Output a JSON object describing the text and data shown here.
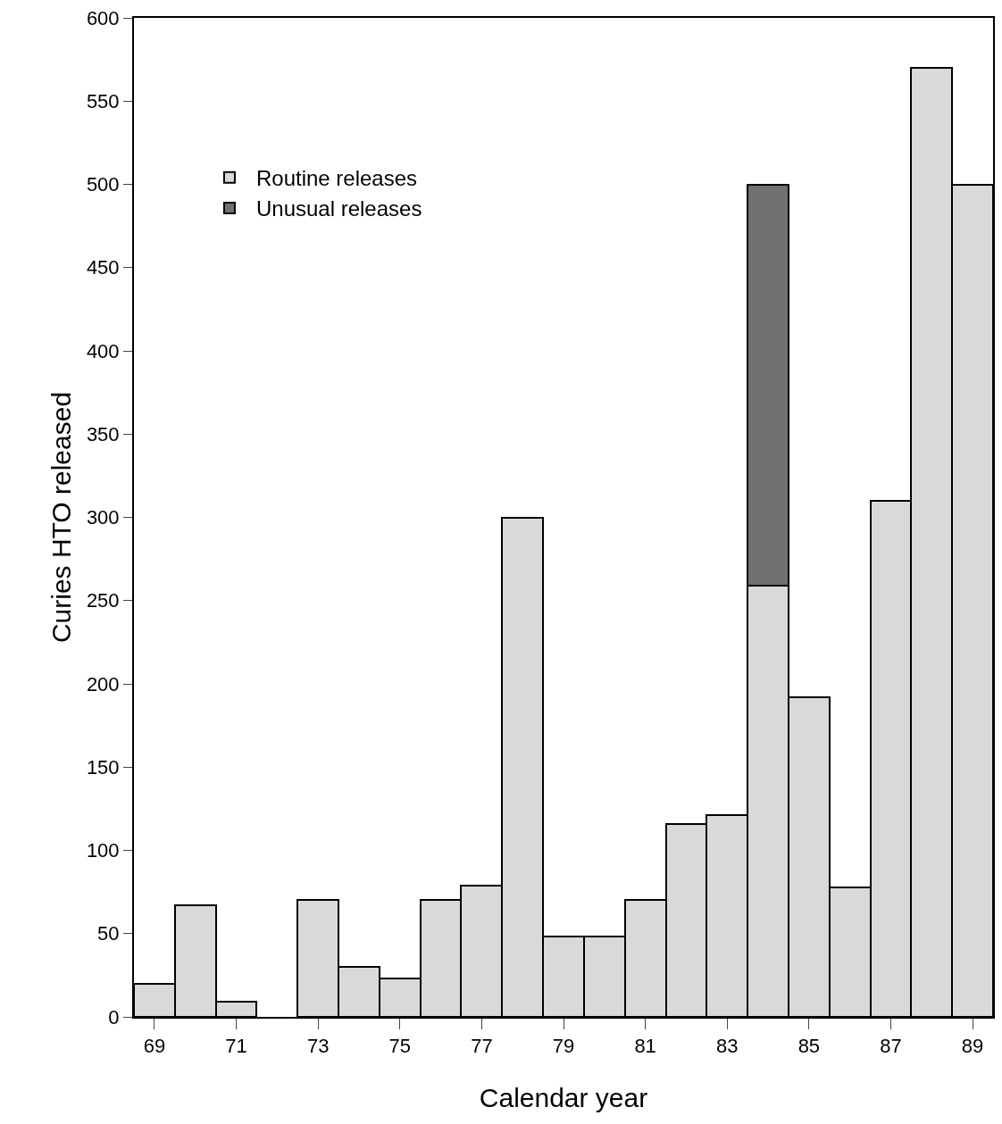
{
  "chart_data": {
    "type": "bar",
    "stacked": true,
    "xlabel": "Calendar year",
    "ylabel": "Curies HTO released",
    "categories": [
      "69",
      null,
      "71",
      null,
      "73",
      null,
      "75",
      null,
      "77",
      null,
      "79",
      null,
      "81",
      null,
      "83",
      null,
      "85",
      null,
      "87",
      null,
      "89"
    ],
    "series": [
      {
        "name": "Routine releases",
        "color": "#d9d9d9",
        "values": [
          20,
          67,
          9,
          null,
          70,
          30,
          23,
          70,
          79,
          300,
          48,
          48,
          70,
          116,
          121,
          259,
          192,
          78,
          310,
          570,
          500
        ]
      },
      {
        "name": "Unusual releases",
        "color": "#707070",
        "values": [
          null,
          null,
          null,
          null,
          null,
          null,
          null,
          null,
          null,
          null,
          null,
          null,
          null,
          null,
          null,
          241,
          null,
          null,
          null,
          null,
          null
        ]
      }
    ],
    "ylim": [
      0,
      600
    ],
    "yticks": [
      0,
      50,
      100,
      150,
      200,
      250,
      300,
      350,
      400,
      450,
      500,
      550,
      600
    ],
    "grid": false,
    "legend": "top left"
  }
}
